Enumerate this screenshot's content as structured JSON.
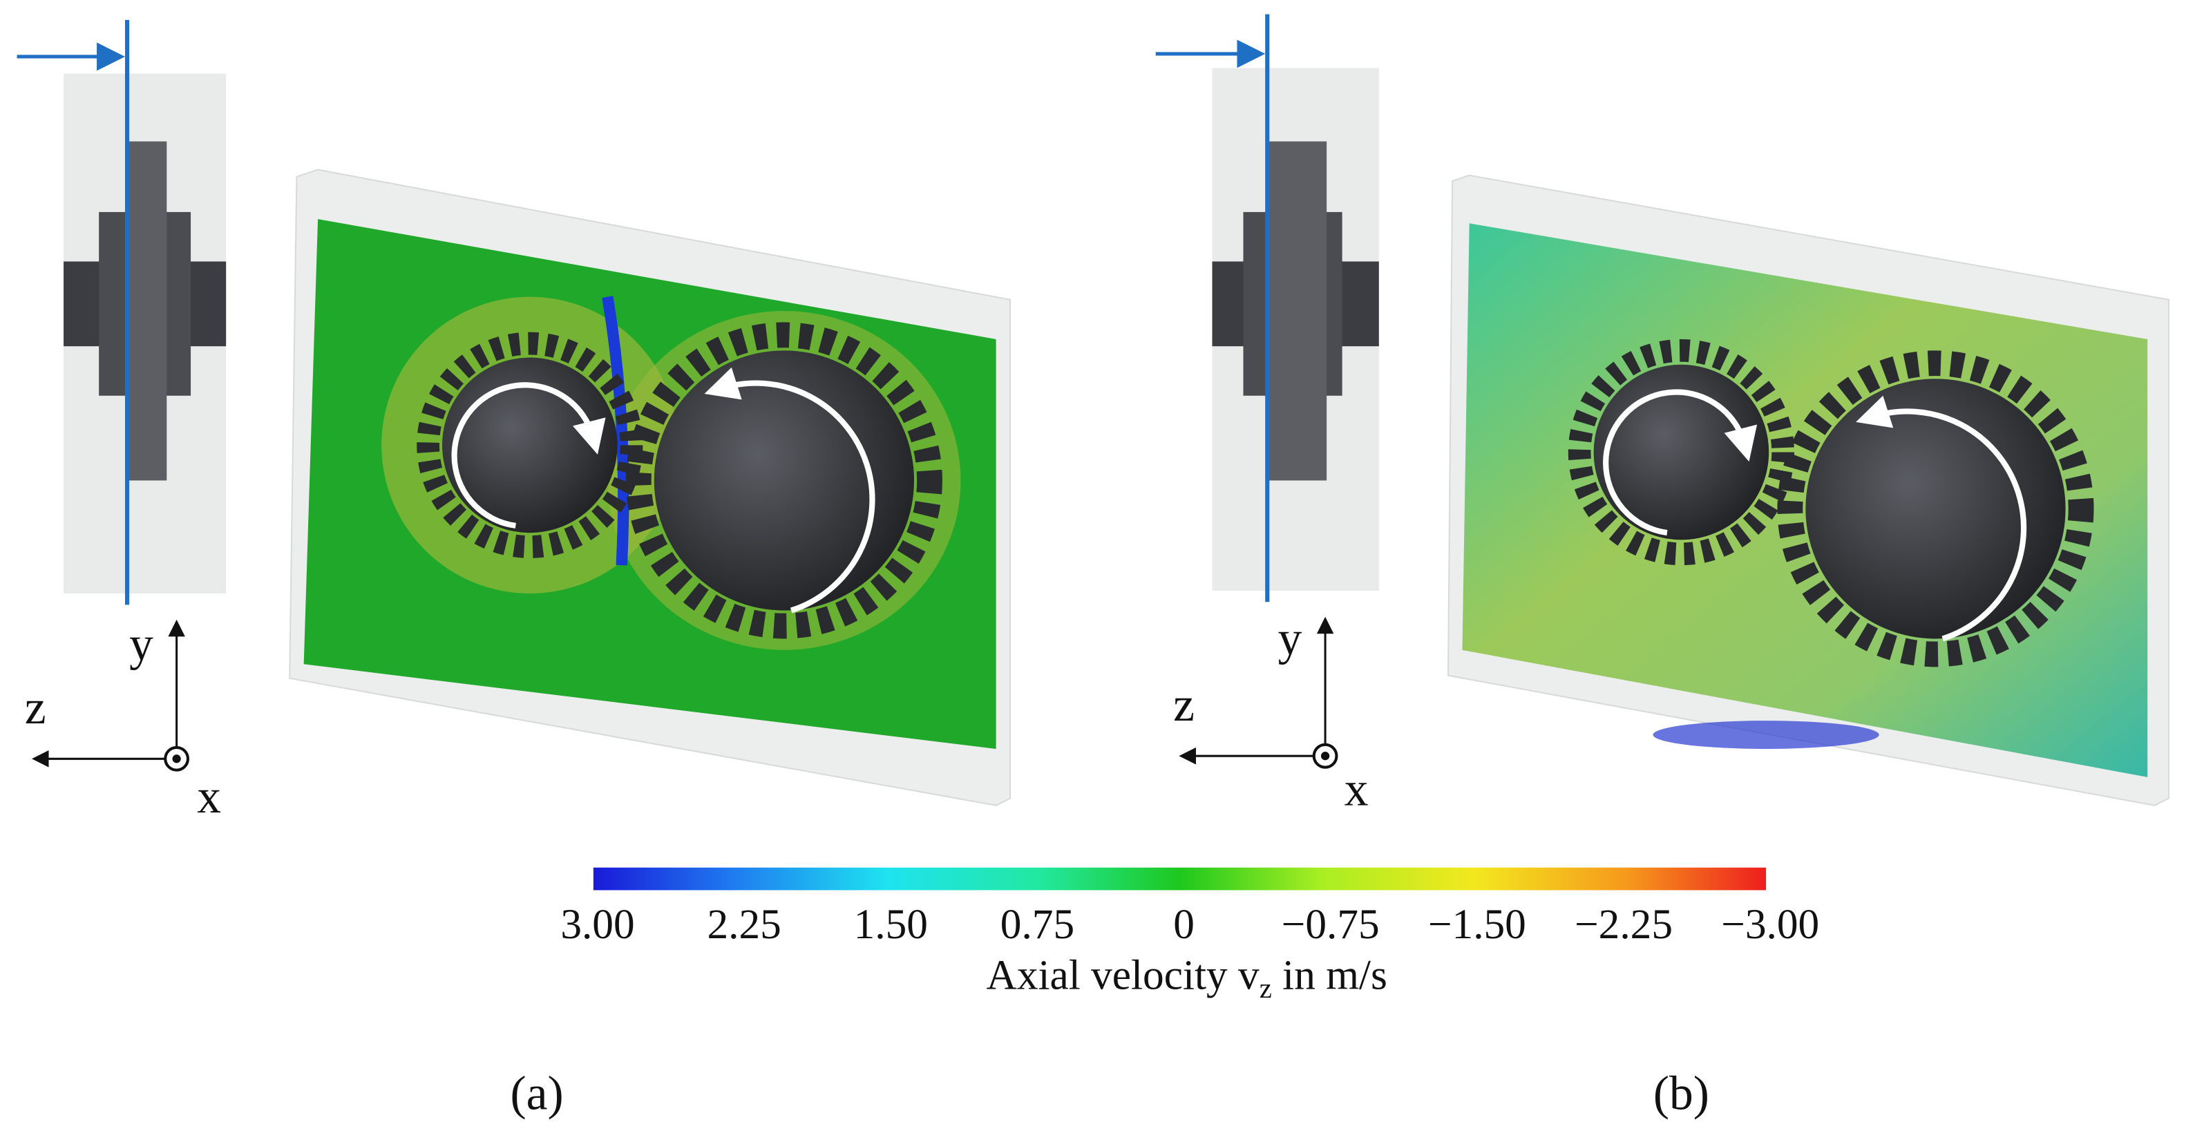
{
  "panels": [
    {
      "label": "(a)",
      "axes": {
        "y": "y",
        "z": "z",
        "x": "x"
      }
    },
    {
      "label": "(b)",
      "axes": {
        "y": "y",
        "z": "z",
        "x": "x"
      }
    }
  ],
  "colorbar": {
    "ticks": [
      "3.00",
      "2.25",
      "1.50",
      "0.75",
      "0",
      "−0.75",
      "−1.50",
      "−2.25",
      "−3.00"
    ],
    "label": {
      "main": "Axial velocity v",
      "subscript": "z",
      "unit": " in m/s"
    }
  }
}
